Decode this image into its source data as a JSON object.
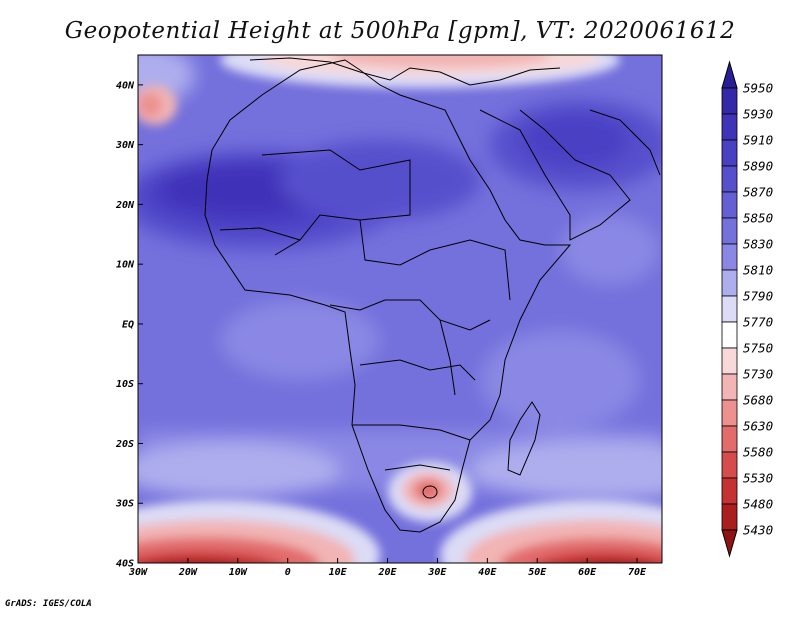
{
  "title": "Geopotential Height at 500hPa [gpm], VT: 2020061612",
  "credit": "GrADS: IGES/COLA",
  "map": {
    "lon_range": [
      -30,
      75
    ],
    "lat_range": [
      -40,
      45
    ],
    "x_ticks": [
      "30W",
      "20W",
      "10W",
      "0",
      "10E",
      "20E",
      "30E",
      "40E",
      "50E",
      "60E",
      "70E"
    ],
    "y_ticks": [
      "40N",
      "30N",
      "20N",
      "10N",
      "EQ",
      "10S",
      "20S",
      "30S",
      "40S"
    ]
  },
  "colorbar": {
    "levels": [
      "5950",
      "5930",
      "5910",
      "5890",
      "5870",
      "5850",
      "5830",
      "5810",
      "5790",
      "5770",
      "5750",
      "5730",
      "5680",
      "5630",
      "5580",
      "5530",
      "5480",
      "5430"
    ],
    "colors": [
      "#2a1e96",
      "#3528a8",
      "#3f33b8",
      "#4a40c4",
      "#5650cc",
      "#6460d4",
      "#7470dc",
      "#8a88e4",
      "#aeaeee",
      "#dcdcf6",
      "#ffffff",
      "#f8d8d8",
      "#f2b4b4",
      "#ec9090",
      "#e26c6c",
      "#d64c4c",
      "#c43232",
      "#aa1e1e",
      "#8e1414"
    ]
  }
}
